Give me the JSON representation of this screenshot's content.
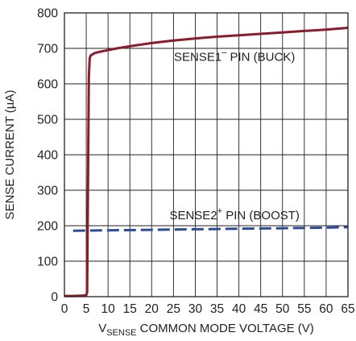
{
  "chart_data": {
    "type": "line",
    "title": "",
    "xlabel": {
      "main": "V",
      "sub": "SENSE",
      "rest": " COMMON MODE VOLTAGE (V)"
    },
    "ylabel": "SENSE CURRENT (µA)",
    "xlim": [
      0,
      65
    ],
    "ylim": [
      0,
      800
    ],
    "x_ticks": [
      "0",
      "5",
      "10",
      "15",
      "20",
      "25",
      "30",
      "35",
      "40",
      "45",
      "50",
      "55",
      "60",
      "65"
    ],
    "y_ticks": [
      "0",
      "100",
      "200",
      "300",
      "400",
      "500",
      "600",
      "700",
      "800"
    ],
    "grid": true,
    "series": [
      {
        "name": "SENSE1⁻ PIN (BUCK)",
        "color": "#8b1c2b",
        "style": "solid",
        "x": [
          0,
          2,
          4,
          5,
          5.2,
          5.4,
          5.6,
          5.8,
          6,
          7,
          8,
          10,
          12,
          15,
          20,
          25,
          30,
          35,
          40,
          45,
          50,
          55,
          60,
          65
        ],
        "y": [
          2,
          2,
          3,
          4,
          12,
          300,
          620,
          672,
          680,
          687,
          690,
          695,
          700,
          706,
          715,
          722,
          728,
          733,
          737,
          741,
          745,
          749,
          753,
          758
        ]
      },
      {
        "name": "SENSE2⁺ PIN (BOOST)",
        "color": "#2e4a9a",
        "style": "dashed",
        "x": [
          2,
          10,
          20,
          30,
          40,
          50,
          60,
          65
        ],
        "y": [
          186,
          187,
          188.5,
          190,
          191.5,
          193,
          194.5,
          196
        ]
      }
    ],
    "annotations": [
      {
        "prefix": "SENSE1",
        "sup": "–",
        "suffix": " PIN (BUCK)",
        "x": 39,
        "y": 665
      },
      {
        "prefix": "SENSE2",
        "sup": "+",
        "suffix": " PIN (BOOST)",
        "x": 39,
        "y": 218
      }
    ]
  }
}
